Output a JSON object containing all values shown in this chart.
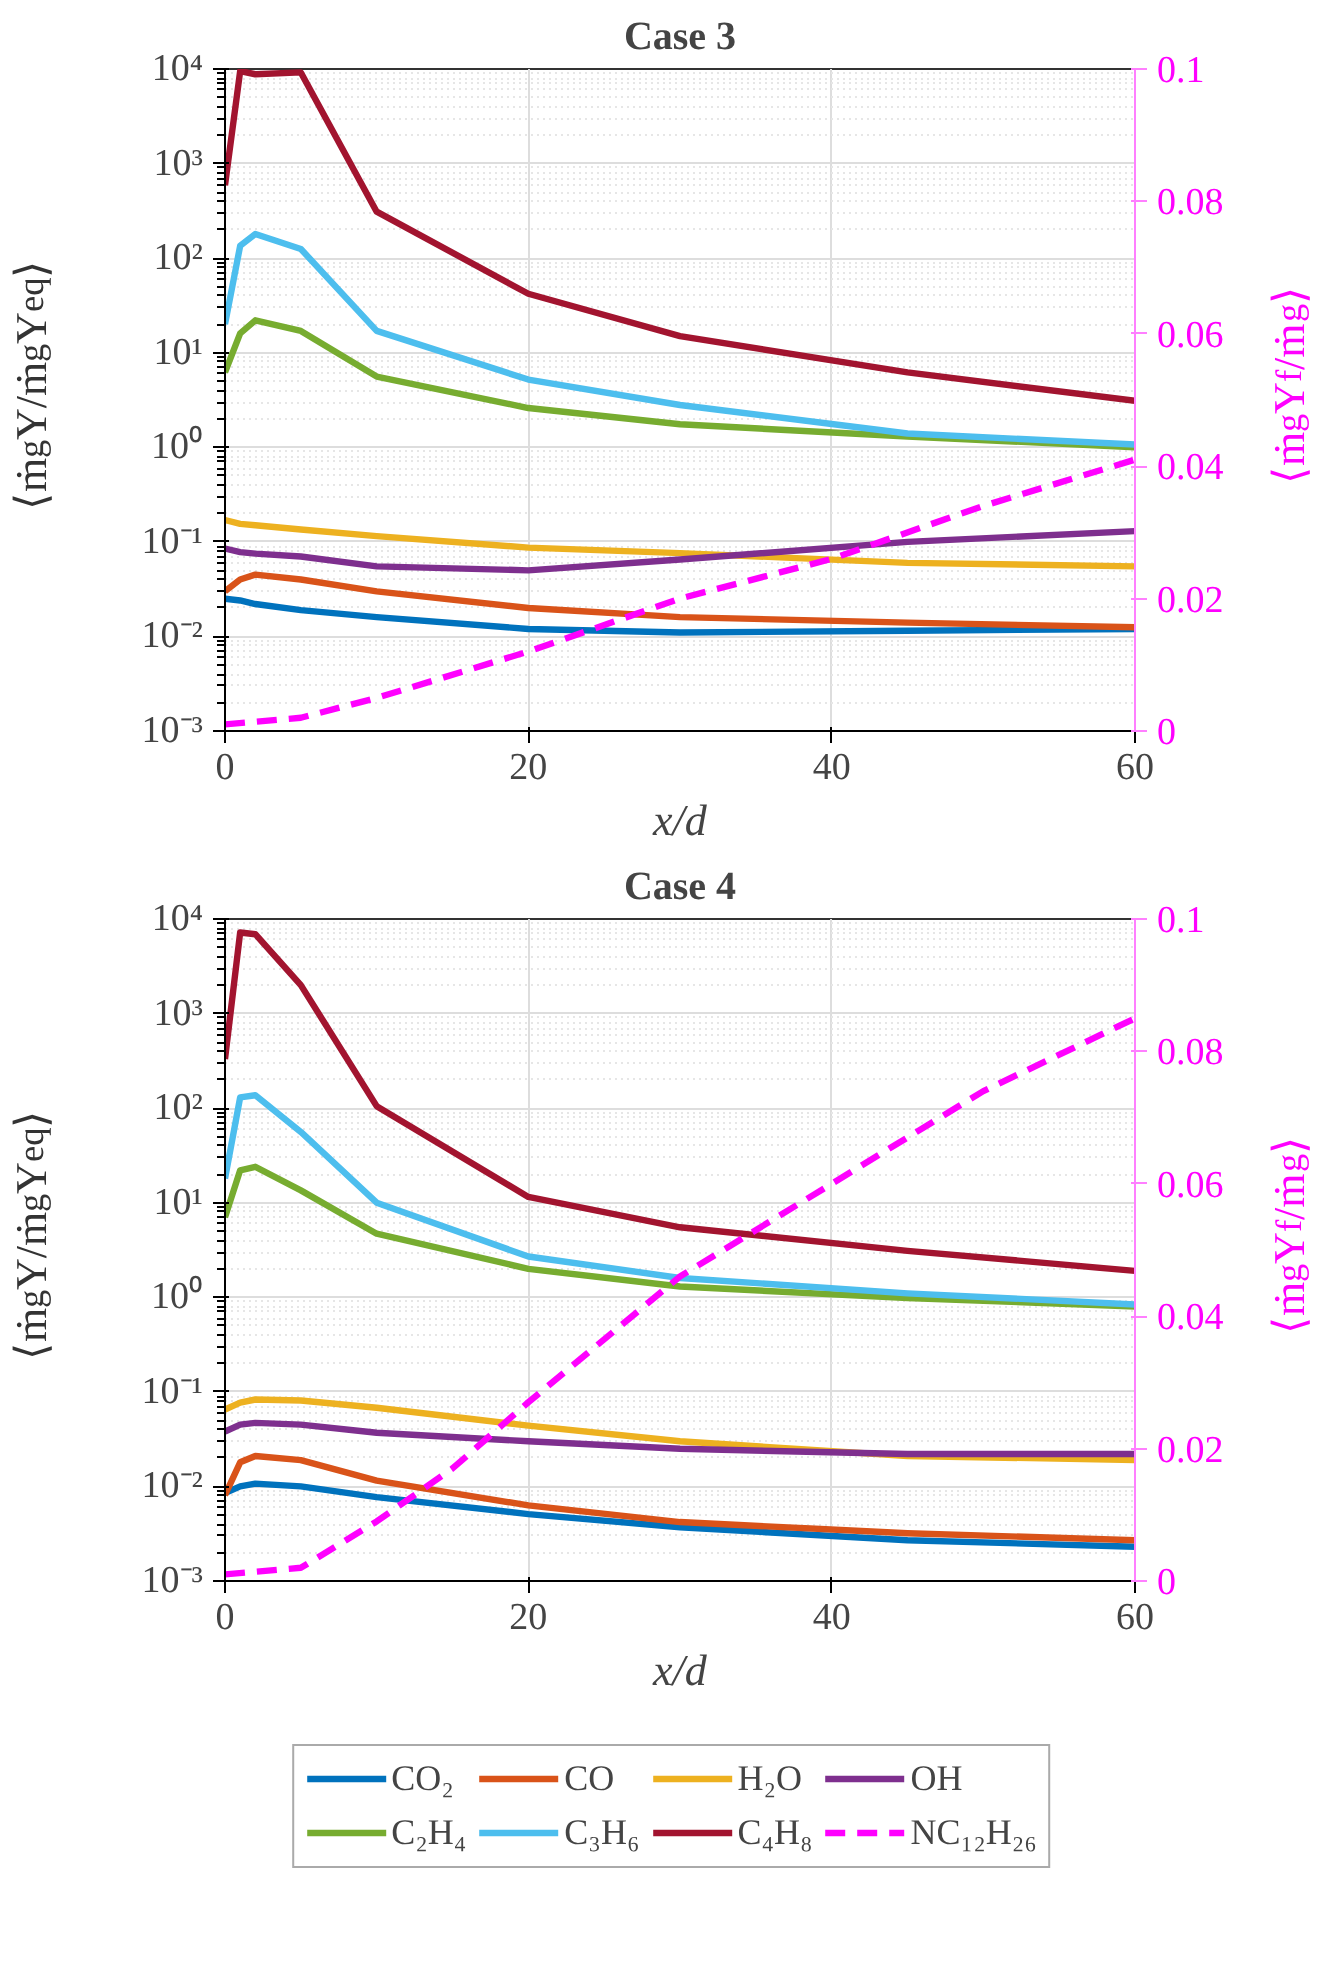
{
  "chart_data": [
    {
      "type": "line",
      "title": "Case 3",
      "xlabel": "x/d",
      "ylabel": "⟨ṁ$_{g}$Y/ṁ$_{g}$Y$_{eq}$⟩",
      "y2label": "⟨ṁ$_{g}$Y$_{f}$/ṁ$_{g}$⟩",
      "x": [
        0,
        1,
        2,
        5,
        10,
        20,
        30,
        45,
        60
      ],
      "xlim": [
        0,
        60
      ],
      "xticks": [
        0,
        20,
        40,
        60
      ],
      "ylim": [
        0.001,
        10000
      ],
      "yticks": [
        {
          "value": 0.001,
          "label": "10⁻³"
        },
        {
          "value": 0.01,
          "label": "10⁻²"
        },
        {
          "value": 0.1,
          "label": "10⁻¹"
        },
        {
          "value": 1,
          "label": "10⁰"
        },
        {
          "value": 10,
          "label": "10¹"
        },
        {
          "value": 100,
          "label": "10²"
        },
        {
          "value": 1000,
          "label": "10³"
        },
        {
          "value": 10000,
          "label": "10⁴"
        }
      ],
      "y2lim": [
        0,
        0.1
      ],
      "y2ticks": [
        0,
        0.02,
        0.04,
        0.06,
        0.08,
        0.1
      ],
      "log": "y",
      "grid": true,
      "line_style": "solid",
      "marker": "none",
      "series": [
        {
          "color": "#0072bd",
          "values": [
            0.025,
            0.024,
            0.022,
            0.019,
            0.016,
            0.012,
            0.011,
            0.0115,
            0.012
          ]
        },
        {
          "color": "#d95319",
          "values": [
            0.03,
            0.04,
            0.045,
            0.04,
            0.03,
            0.02,
            0.016,
            0.014,
            0.0125
          ]
        },
        {
          "color": "#edb120",
          "values": [
            0.17,
            0.155,
            0.15,
            0.135,
            0.115,
            0.087,
            0.076,
            0.06,
            0.055
          ]
        },
        {
          "color": "#7e2f8e",
          "values": [
            0.085,
            0.078,
            0.075,
            0.07,
            0.055,
            0.05,
            0.065,
            0.1,
            0.13
          ]
        },
        {
          "color": "#77ac30",
          "values": [
            6.2,
            16,
            22,
            17,
            5.6,
            2.6,
            1.75,
            1.3,
            1.0
          ]
        },
        {
          "color": "#4dbeee",
          "values": [
            20,
            135,
            180,
            125,
            17,
            5.2,
            2.8,
            1.4,
            1.07
          ]
        },
        {
          "color": "#a2142f",
          "values": [
            590,
            9500,
            8800,
            9200,
            310,
            42,
            15,
            6.2,
            3.1
          ]
        },
        {
          "color": "#ff00ff",
          "axis": "y2",
          "line_style": "dashed",
          "x": [
            0,
            5,
            10,
            20,
            30,
            40,
            50,
            60
          ],
          "values": [
            0.001,
            0.002,
            0.005,
            0.012,
            0.02,
            0.026,
            0.034,
            0.041
          ]
        }
      ]
    },
    {
      "type": "line",
      "title": "Case 4",
      "xlabel": "x/d",
      "ylabel": "⟨ṁ$_{g}$Y/ṁ$_{g}$Y$_{eq}$⟩",
      "y2label": "⟨ṁ$_{g}$Y$_{f}$/ṁ$_{g}$⟩",
      "x": [
        0,
        1,
        2,
        5,
        10,
        20,
        30,
        45,
        60
      ],
      "xlim": [
        0,
        60
      ],
      "xticks": [
        0,
        20,
        40,
        60
      ],
      "ylim": [
        0.001,
        10000
      ],
      "yticks": [
        {
          "value": 0.001,
          "label": "10⁻³"
        },
        {
          "value": 0.01,
          "label": "10⁻²"
        },
        {
          "value": 0.1,
          "label": "10⁻¹"
        },
        {
          "value": 1,
          "label": "10⁰"
        },
        {
          "value": 10,
          "label": "10¹"
        },
        {
          "value": 100,
          "label": "10²"
        },
        {
          "value": 1000,
          "label": "10³"
        },
        {
          "value": 10000,
          "label": "10⁴"
        }
      ],
      "y2lim": [
        0,
        0.1
      ],
      "y2ticks": [
        0,
        0.02,
        0.04,
        0.06,
        0.08,
        0.1
      ],
      "log": "y",
      "grid": true,
      "line_style": "solid",
      "marker": "none",
      "legend": "bottom",
      "series": [
        {
          "name": "CO₂",
          "color": "#0072bd",
          "values": [
            0.0085,
            0.01,
            0.0107,
            0.01,
            0.0077,
            0.0051,
            0.0037,
            0.0027,
            0.0023
          ]
        },
        {
          "name": "CO",
          "color": "#d95319",
          "values": [
            0.0081,
            0.018,
            0.021,
            0.019,
            0.0115,
            0.0063,
            0.0042,
            0.0032,
            0.0027
          ]
        },
        {
          "name": "H₂O",
          "color": "#edb120",
          "values": [
            0.065,
            0.077,
            0.083,
            0.081,
            0.068,
            0.044,
            0.03,
            0.021,
            0.019
          ]
        },
        {
          "name": "OH",
          "color": "#7e2f8e",
          "values": [
            0.038,
            0.045,
            0.047,
            0.045,
            0.037,
            0.03,
            0.025,
            0.022,
            0.022
          ]
        },
        {
          "name": "C₂H₄",
          "color": "#77ac30",
          "values": [
            7,
            22,
            24,
            13.5,
            4.7,
            2.0,
            1.3,
            0.98,
            0.8
          ]
        },
        {
          "name": "C₃H₆",
          "color": "#4dbeee",
          "values": [
            18,
            130,
            137,
            56,
            10,
            2.7,
            1.6,
            1.1,
            0.84
          ]
        },
        {
          "name": "C₄H₈",
          "color": "#a2142f",
          "values": [
            330,
            7200,
            6900,
            2000,
            105,
            11.5,
            5.5,
            3.1,
            1.9
          ]
        },
        {
          "name": "NC₁₂H₂₆",
          "color": "#ff00ff",
          "axis": "y2",
          "line_style": "dashed",
          "x": [
            0,
            5,
            10,
            15,
            20,
            30,
            40,
            50,
            60
          ],
          "values": [
            0.001,
            0.002,
            0.009,
            0.017,
            0.027,
            0.046,
            0.06,
            0.074,
            0.085
          ]
        }
      ]
    }
  ]
}
